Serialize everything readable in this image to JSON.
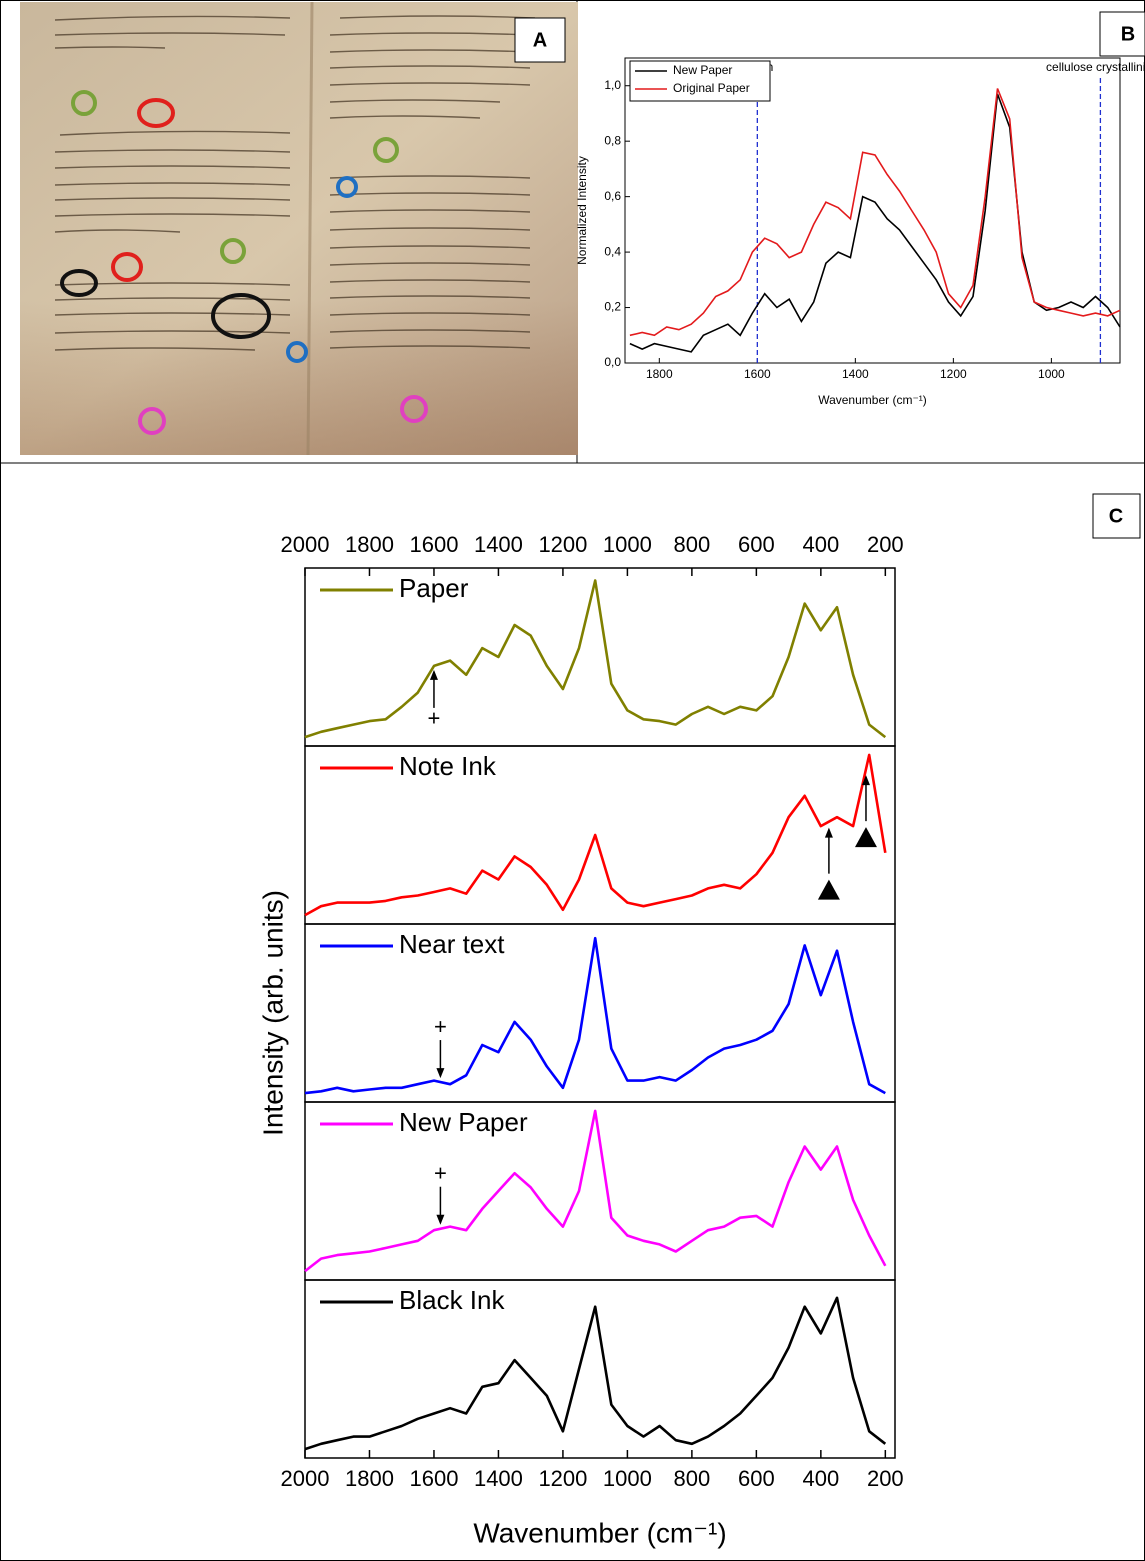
{
  "panel_labels": [
    "A",
    "B",
    "C"
  ],
  "chart_data": [
    {
      "type": "line",
      "xlabel": "Wavenumber (cm⁻¹)",
      "ylabel": "Normalized Intensity",
      "x": [
        1860,
        1835,
        1810,
        1785,
        1760,
        1735,
        1710,
        1685,
        1660,
        1635,
        1610,
        1585,
        1560,
        1535,
        1510,
        1485,
        1460,
        1435,
        1410,
        1385,
        1360,
        1335,
        1310,
        1285,
        1260,
        1235,
        1210,
        1185,
        1160,
        1135,
        1110,
        1085,
        1060,
        1035,
        1010,
        985,
        960,
        935,
        910,
        885,
        860
      ],
      "series": [
        {
          "name": "New Paper",
          "color": "#000000",
          "values": [
            0.07,
            0.05,
            0.07,
            0.06,
            0.05,
            0.04,
            0.1,
            0.12,
            0.14,
            0.1,
            0.18,
            0.25,
            0.2,
            0.23,
            0.15,
            0.22,
            0.36,
            0.4,
            0.38,
            0.6,
            0.58,
            0.52,
            0.48,
            0.42,
            0.36,
            0.3,
            0.22,
            0.17,
            0.24,
            0.55,
            0.97,
            0.85,
            0.4,
            0.22,
            0.19,
            0.2,
            0.22,
            0.2,
            0.24,
            0.2,
            0.13
          ]
        },
        {
          "name": "Original Paper",
          "color": "#e31a1c",
          "values": [
            0.1,
            0.11,
            0.1,
            0.13,
            0.12,
            0.14,
            0.18,
            0.24,
            0.26,
            0.3,
            0.4,
            0.45,
            0.43,
            0.38,
            0.4,
            0.5,
            0.58,
            0.56,
            0.52,
            0.76,
            0.75,
            0.68,
            0.62,
            0.55,
            0.48,
            0.4,
            0.25,
            0.2,
            0.28,
            0.6,
            0.99,
            0.88,
            0.38,
            0.22,
            0.2,
            0.19,
            0.18,
            0.17,
            0.18,
            0.17,
            0.19
          ]
        }
      ],
      "xlim": [
        1870,
        860
      ],
      "xticks": [
        1800,
        1600,
        1400,
        1200,
        1000
      ],
      "ylim": [
        0,
        1.1
      ],
      "yticks": [
        {
          "value": 0,
          "label": "0,0"
        },
        {
          "value": 0.2,
          "label": "0,2"
        },
        {
          "value": 0.4,
          "label": "0,4"
        },
        {
          "value": 0.6,
          "label": "0,6"
        },
        {
          "value": 0.8,
          "label": "0,8"
        },
        {
          "value": 1.0,
          "label": "1,0"
        }
      ],
      "legend": "upper left",
      "annotations": [
        {
          "text": "Lignin",
          "x": 1600
        },
        {
          "text": "cellulose crystallinity",
          "x": 900
        }
      ]
    },
    {
      "type": "line",
      "panels": "stacked",
      "xlabel": "Wavenumber (cm⁻¹)",
      "ylabel": "Intensity (arb. units)",
      "x": [
        2000,
        1950,
        1900,
        1850,
        1800,
        1750,
        1700,
        1650,
        1600,
        1550,
        1500,
        1450,
        1400,
        1350,
        1300,
        1250,
        1200,
        1150,
        1100,
        1050,
        1000,
        950,
        900,
        850,
        800,
        750,
        700,
        650,
        600,
        550,
        500,
        450,
        400,
        350,
        300,
        250,
        200
      ],
      "series": [
        {
          "name": "Paper",
          "color": "#808000",
          "values": [
            0.05,
            0.08,
            0.1,
            0.12,
            0.14,
            0.15,
            0.22,
            0.3,
            0.45,
            0.48,
            0.4,
            0.55,
            0.5,
            0.68,
            0.62,
            0.45,
            0.32,
            0.55,
            0.93,
            0.35,
            0.2,
            0.15,
            0.14,
            0.12,
            0.18,
            0.22,
            0.18,
            0.22,
            0.2,
            0.28,
            0.5,
            0.8,
            0.65,
            0.78,
            0.4,
            0.12,
            0.05
          ],
          "annotations": [
            {
              "x": 1600,
              "text": "+",
              "position": "below"
            }
          ]
        },
        {
          "name": "Note Ink",
          "color": "#ff0000",
          "values": [
            0.05,
            0.1,
            0.12,
            0.12,
            0.12,
            0.13,
            0.15,
            0.16,
            0.18,
            0.2,
            0.17,
            0.3,
            0.25,
            0.38,
            0.32,
            0.22,
            0.08,
            0.25,
            0.5,
            0.2,
            0.12,
            0.1,
            0.12,
            0.14,
            0.16,
            0.2,
            0.22,
            0.2,
            0.28,
            0.4,
            0.6,
            0.72,
            0.55,
            0.6,
            0.55,
            0.95,
            0.4
          ],
          "annotations": [
            {
              "x": 375,
              "marker": "triangle"
            },
            {
              "x": 260,
              "marker": "triangle"
            }
          ]
        },
        {
          "name": "Near text",
          "color": "#0000ff",
          "values": [
            0.05,
            0.06,
            0.08,
            0.06,
            0.07,
            0.08,
            0.08,
            0.1,
            0.12,
            0.1,
            0.15,
            0.32,
            0.28,
            0.45,
            0.35,
            0.2,
            0.08,
            0.35,
            0.92,
            0.3,
            0.12,
            0.12,
            0.14,
            0.12,
            0.18,
            0.25,
            0.3,
            0.32,
            0.35,
            0.4,
            0.55,
            0.88,
            0.6,
            0.85,
            0.45,
            0.1,
            0.05
          ],
          "annotations": [
            {
              "x": 1580,
              "text": "+",
              "position": "above"
            }
          ]
        },
        {
          "name": "New Paper",
          "color": "#ff00ff",
          "values": [
            0.05,
            0.12,
            0.14,
            0.15,
            0.16,
            0.18,
            0.2,
            0.22,
            0.28,
            0.3,
            0.28,
            0.4,
            0.5,
            0.6,
            0.52,
            0.4,
            0.3,
            0.5,
            0.95,
            0.35,
            0.25,
            0.22,
            0.2,
            0.16,
            0.22,
            0.28,
            0.3,
            0.35,
            0.36,
            0.3,
            0.55,
            0.75,
            0.62,
            0.75,
            0.45,
            0.25,
            0.08
          ],
          "annotations": [
            {
              "x": 1580,
              "text": "+",
              "position": "above"
            }
          ]
        },
        {
          "name": "Black  Ink",
          "color": "#000000",
          "values": [
            0.05,
            0.08,
            0.1,
            0.12,
            0.12,
            0.15,
            0.18,
            0.22,
            0.25,
            0.28,
            0.25,
            0.4,
            0.42,
            0.55,
            0.45,
            0.35,
            0.15,
            0.5,
            0.85,
            0.3,
            0.18,
            0.12,
            0.18,
            0.1,
            0.08,
            0.12,
            0.18,
            0.25,
            0.35,
            0.45,
            0.62,
            0.85,
            0.7,
            0.9,
            0.45,
            0.15,
            0.08
          ]
        }
      ],
      "xlim": [
        2000,
        170
      ],
      "xticks": [
        2000,
        1800,
        1600,
        1400,
        1200,
        1000,
        800,
        600,
        400,
        200
      ],
      "ylim": [
        0,
        1
      ]
    }
  ]
}
